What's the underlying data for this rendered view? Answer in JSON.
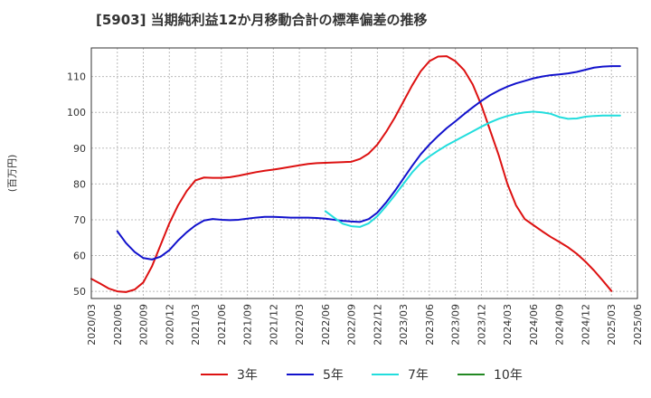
{
  "chart_data": {
    "type": "line",
    "title": "[5903]  当期純利益12か月移動合計の標準偏差の推移",
    "ylabel": "(百万円)",
    "xlabel": "",
    "ylim": [
      48,
      118
    ],
    "y_ticks": [
      50,
      60,
      70,
      80,
      90,
      100,
      110
    ],
    "x_ticks": [
      "2020/03",
      "2020/06",
      "2020/09",
      "2020/12",
      "2021/03",
      "2021/06",
      "2021/09",
      "2021/12",
      "2022/03",
      "2022/06",
      "2022/09",
      "2022/12",
      "2023/03",
      "2023/06",
      "2023/09",
      "2023/12",
      "2024/03",
      "2024/06",
      "2024/09",
      "2024/12",
      "2025/03",
      "2025/06"
    ],
    "grid": true,
    "legend_position": "bottom",
    "series": [
      {
        "name": "3年",
        "color": "#dd1111",
        "points": [
          [
            "2020/03",
            53.5
          ],
          [
            "2020/04",
            52.2
          ],
          [
            "2020/05",
            50.8
          ],
          [
            "2020/06",
            50.0
          ],
          [
            "2020/07",
            49.8
          ],
          [
            "2020/08",
            50.5
          ],
          [
            "2020/09",
            52.5
          ],
          [
            "2020/10",
            57.0
          ],
          [
            "2020/11",
            63.0
          ],
          [
            "2020/12",
            69.0
          ],
          [
            "2021/01",
            74.0
          ],
          [
            "2021/02",
            78.0
          ],
          [
            "2021/03",
            81.0
          ],
          [
            "2021/04",
            81.8
          ],
          [
            "2021/05",
            81.7
          ],
          [
            "2021/06",
            81.7
          ],
          [
            "2021/07",
            81.9
          ],
          [
            "2021/08",
            82.3
          ],
          [
            "2021/09",
            82.8
          ],
          [
            "2021/10",
            83.3
          ],
          [
            "2021/11",
            83.7
          ],
          [
            "2021/12",
            84.0
          ],
          [
            "2022/01",
            84.4
          ],
          [
            "2022/02",
            84.8
          ],
          [
            "2022/03",
            85.2
          ],
          [
            "2022/04",
            85.6
          ],
          [
            "2022/05",
            85.8
          ],
          [
            "2022/06",
            85.9
          ],
          [
            "2022/07",
            86.0
          ],
          [
            "2022/08",
            86.1
          ],
          [
            "2022/09",
            86.2
          ],
          [
            "2022/10",
            87.0
          ],
          [
            "2022/11",
            88.5
          ],
          [
            "2022/12",
            91.0
          ],
          [
            "2023/01",
            94.5
          ],
          [
            "2023/02",
            98.5
          ],
          [
            "2023/03",
            103.0
          ],
          [
            "2023/04",
            107.5
          ],
          [
            "2023/05",
            111.5
          ],
          [
            "2023/06",
            114.3
          ],
          [
            "2023/07",
            115.6
          ],
          [
            "2023/08",
            115.7
          ],
          [
            "2023/09",
            114.3
          ],
          [
            "2023/10",
            111.8
          ],
          [
            "2023/11",
            107.8
          ],
          [
            "2023/12",
            102.0
          ],
          [
            "2024/01",
            95.0
          ],
          [
            "2024/02",
            88.0
          ],
          [
            "2024/03",
            80.0
          ],
          [
            "2024/04",
            74.0
          ],
          [
            "2024/05",
            70.2
          ],
          [
            "2024/06",
            68.5
          ],
          [
            "2024/07",
            66.8
          ],
          [
            "2024/08",
            65.2
          ],
          [
            "2024/09",
            63.8
          ],
          [
            "2024/10",
            62.3
          ],
          [
            "2024/11",
            60.5
          ],
          [
            "2024/12",
            58.3
          ],
          [
            "2025/01",
            55.8
          ],
          [
            "2025/02",
            53.0
          ],
          [
            "2025/03",
            50.1
          ]
        ]
      },
      {
        "name": "5年",
        "color": "#1111cc",
        "points": [
          [
            "2020/06",
            66.8
          ],
          [
            "2020/07",
            63.5
          ],
          [
            "2020/08",
            61.0
          ],
          [
            "2020/09",
            59.3
          ],
          [
            "2020/10",
            58.9
          ],
          [
            "2020/11",
            59.7
          ],
          [
            "2020/12",
            61.5
          ],
          [
            "2021/01",
            64.2
          ],
          [
            "2021/02",
            66.5
          ],
          [
            "2021/03",
            68.4
          ],
          [
            "2021/04",
            69.8
          ],
          [
            "2021/05",
            70.2
          ],
          [
            "2021/06",
            70.0
          ],
          [
            "2021/07",
            69.9
          ],
          [
            "2021/08",
            70.0
          ],
          [
            "2021/09",
            70.3
          ],
          [
            "2021/10",
            70.6
          ],
          [
            "2021/11",
            70.8
          ],
          [
            "2021/12",
            70.8
          ],
          [
            "2022/01",
            70.7
          ],
          [
            "2022/02",
            70.6
          ],
          [
            "2022/03",
            70.6
          ],
          [
            "2022/04",
            70.6
          ],
          [
            "2022/05",
            70.5
          ],
          [
            "2022/06",
            70.3
          ],
          [
            "2022/07",
            70.0
          ],
          [
            "2022/08",
            69.7
          ],
          [
            "2022/09",
            69.5
          ],
          [
            "2022/10",
            69.4
          ],
          [
            "2022/11",
            70.2
          ],
          [
            "2022/12",
            72.0
          ],
          [
            "2023/01",
            74.8
          ],
          [
            "2023/02",
            78.0
          ],
          [
            "2023/03",
            81.5
          ],
          [
            "2023/04",
            85.0
          ],
          [
            "2023/05",
            88.3
          ],
          [
            "2023/06",
            91.0
          ],
          [
            "2023/07",
            93.4
          ],
          [
            "2023/08",
            95.6
          ],
          [
            "2023/09",
            97.5
          ],
          [
            "2023/10",
            99.5
          ],
          [
            "2023/11",
            101.4
          ],
          [
            "2023/12",
            103.2
          ],
          [
            "2024/01",
            104.8
          ],
          [
            "2024/02",
            106.1
          ],
          [
            "2024/03",
            107.2
          ],
          [
            "2024/04",
            108.1
          ],
          [
            "2024/05",
            108.8
          ],
          [
            "2024/06",
            109.5
          ],
          [
            "2024/07",
            110.0
          ],
          [
            "2024/08",
            110.4
          ],
          [
            "2024/09",
            110.6
          ],
          [
            "2024/10",
            110.9
          ],
          [
            "2024/11",
            111.3
          ],
          [
            "2024/12",
            111.9
          ],
          [
            "2025/01",
            112.5
          ],
          [
            "2025/02",
            112.8
          ],
          [
            "2025/03",
            112.9
          ],
          [
            "2025/04",
            112.9
          ]
        ]
      },
      {
        "name": "7年",
        "color": "#22dddd",
        "points": [
          [
            "2022/06",
            72.4
          ],
          [
            "2022/07",
            70.6
          ],
          [
            "2022/08",
            68.9
          ],
          [
            "2022/09",
            68.2
          ],
          [
            "2022/10",
            68.0
          ],
          [
            "2022/11",
            69.0
          ],
          [
            "2022/12",
            71.0
          ],
          [
            "2023/01",
            73.8
          ],
          [
            "2023/02",
            76.8
          ],
          [
            "2023/03",
            80.0
          ],
          [
            "2023/04",
            83.2
          ],
          [
            "2023/05",
            85.8
          ],
          [
            "2023/06",
            87.7
          ],
          [
            "2023/07",
            89.3
          ],
          [
            "2023/08",
            90.8
          ],
          [
            "2023/09",
            92.1
          ],
          [
            "2023/10",
            93.4
          ],
          [
            "2023/11",
            94.7
          ],
          [
            "2023/12",
            96.0
          ],
          [
            "2024/01",
            97.2
          ],
          [
            "2024/02",
            98.2
          ],
          [
            "2024/03",
            99.0
          ],
          [
            "2024/04",
            99.6
          ],
          [
            "2024/05",
            100.0
          ],
          [
            "2024/06",
            100.2
          ],
          [
            "2024/07",
            100.0
          ],
          [
            "2024/08",
            99.6
          ],
          [
            "2024/09",
            98.7
          ],
          [
            "2024/10",
            98.2
          ],
          [
            "2024/11",
            98.3
          ],
          [
            "2024/12",
            98.8
          ],
          [
            "2025/01",
            99.0
          ],
          [
            "2025/02",
            99.1
          ],
          [
            "2025/03",
            99.1
          ],
          [
            "2025/04",
            99.1
          ]
        ]
      },
      {
        "name": "10年",
        "color": "#228822",
        "points": []
      }
    ]
  }
}
